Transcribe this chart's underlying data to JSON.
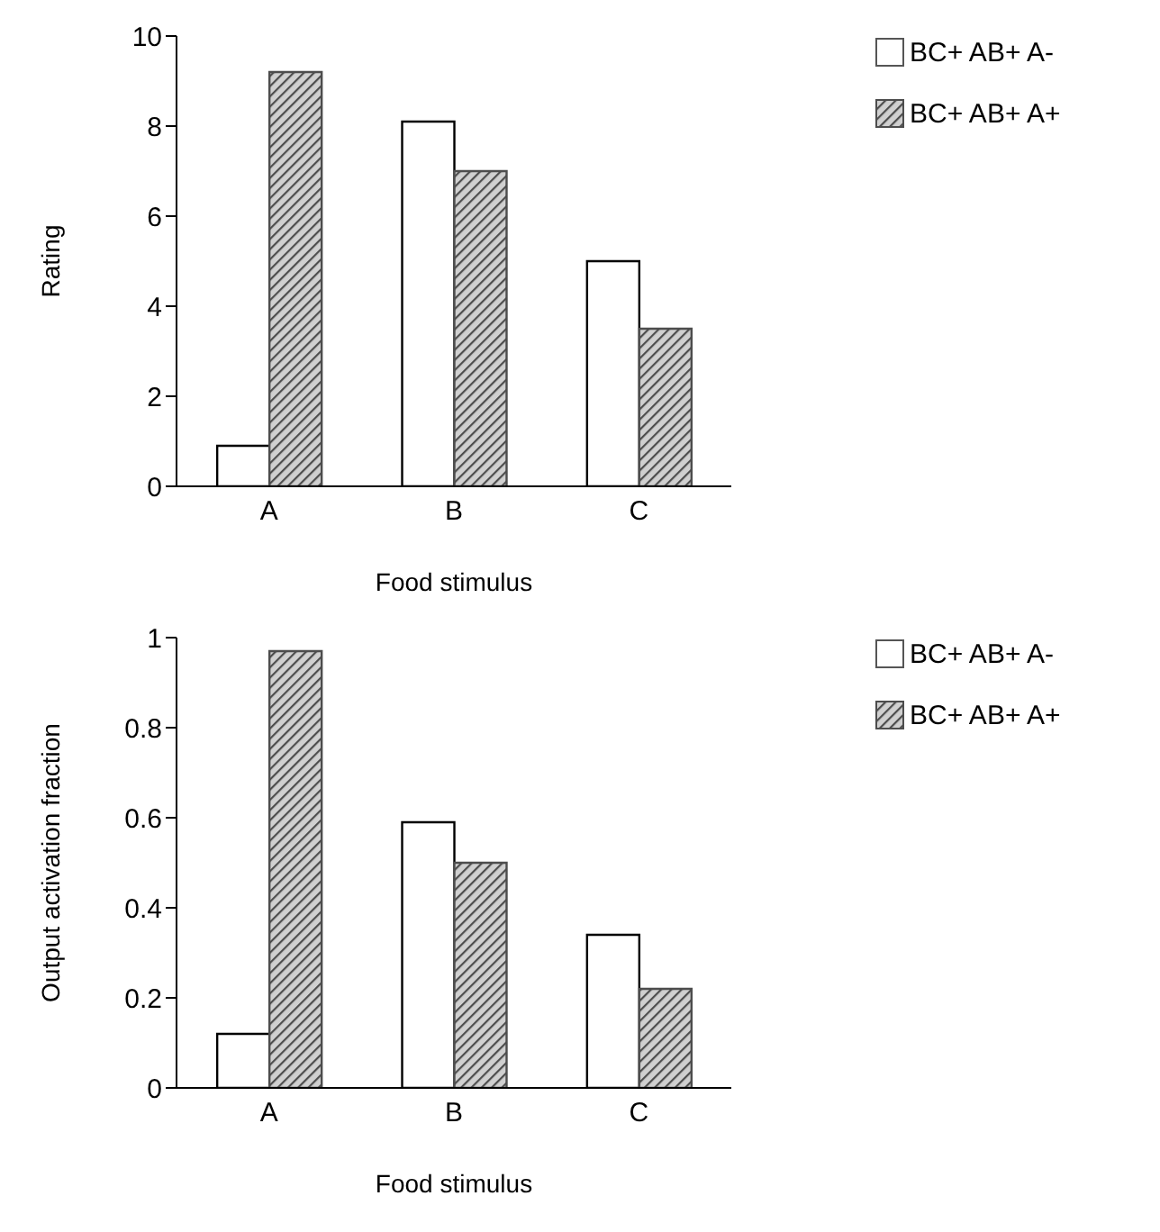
{
  "chart_data": [
    {
      "type": "bar",
      "categories": [
        "A",
        "B",
        "C"
      ],
      "xlabel": "Food stimulus",
      "ylabel": "Rating",
      "ylim": [
        0,
        10
      ],
      "yticks": [
        0,
        2,
        4,
        6,
        8,
        10
      ],
      "grid": false,
      "legend": "top right",
      "series": [
        {
          "name": "BC+ AB+ A-",
          "color": "#ffffff",
          "values": [
            0.9,
            8.1,
            5.0
          ]
        },
        {
          "name": "BC+ AB+ A+",
          "color": "#4d4d4d",
          "values": [
            9.2,
            7.0,
            3.5
          ]
        }
      ]
    },
    {
      "type": "bar",
      "categories": [
        "A",
        "B",
        "C"
      ],
      "xlabel": "Food stimulus",
      "ylabel": "Output activation fraction",
      "ylim": [
        0,
        1
      ],
      "yticks": [
        0,
        0.2,
        0.4,
        0.6,
        0.8,
        1
      ],
      "grid": false,
      "legend": "top right",
      "series": [
        {
          "name": "BC+ AB+ A-",
          "color": "#ffffff",
          "values": [
            0.12,
            0.59,
            0.34
          ]
        },
        {
          "name": "BC+ AB+ A+",
          "color": "#4d4d4d",
          "values": [
            0.97,
            0.5,
            0.22
          ]
        }
      ]
    }
  ]
}
